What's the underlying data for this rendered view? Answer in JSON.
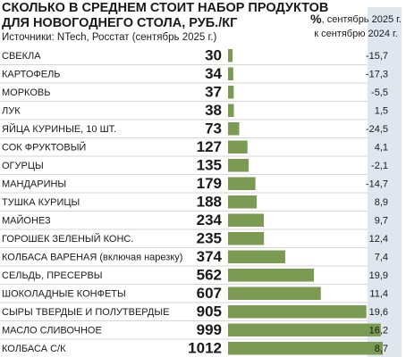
{
  "chart_data": {
    "type": "bar",
    "title": [
      "СКОЛЬКО В СРЕДНЕМ СТОИТ НАБОР ПРОДУКТОВ",
      "ДЛЯ НОВОГОДНЕГО СТОЛА, РУБ./КГ"
    ],
    "subtitle": "Источники: NTech, Росстат (сентябрь 2025 г.)",
    "change_header_unit": "%",
    "change_header": [
      ", сентябрь 2025 г.",
      "к сентябрю 2024 г."
    ],
    "categories": [
      "СВЕКЛА",
      "КАРТОФЕЛЬ",
      "МОРКОВЬ",
      "ЛУК",
      "ЯЙЦА КУРИНЫЕ, 10 ШТ.",
      "СОК ФРУКТОВЫЙ",
      "ОГУРЦЫ",
      "МАНДАРИНЫ",
      "ТУШКА КУРИЦЫ",
      "МАЙОНЕЗ",
      "ГОРОШЕК ЗЕЛЕНЫЙ КОНС.",
      "КОЛБАСА ВАРЕНАЯ (включая нарезку)",
      "СЕЛЬДЬ, ПРЕСЕРВЫ",
      "ШОКОЛАДНЫЕ КОНФЕТЫ",
      "СЫРЫ ТВЕРДЫЕ И ПОЛУТВЕРДЫЕ",
      "МАСЛО СЛИВОЧНОЕ",
      "КОЛБАСА С/К"
    ],
    "values": [
      30,
      34,
      37,
      38,
      73,
      127,
      135,
      179,
      188,
      234,
      235,
      374,
      562,
      607,
      905,
      999,
      1012
    ],
    "color": "#7b9a52",
    "changes": {
      "values": [
        -15.7,
        -17.3,
        -5.5,
        1.5,
        -24.5,
        4.1,
        -2.1,
        -14.7,
        8.9,
        9.7,
        12.4,
        7.4,
        19.9,
        11.4,
        19.6,
        16.2,
        8.7
      ],
      "value_labels": [
        "-15,7",
        "-17,3",
        "-5,5",
        "1,5",
        "-24,5",
        "4,1",
        "-2,1",
        "-14,7",
        "8,9",
        "9,7",
        "12,4",
        "7,4",
        "19,9",
        "11,4",
        "19,6",
        "16,2",
        "8,7"
      ]
    }
  }
}
